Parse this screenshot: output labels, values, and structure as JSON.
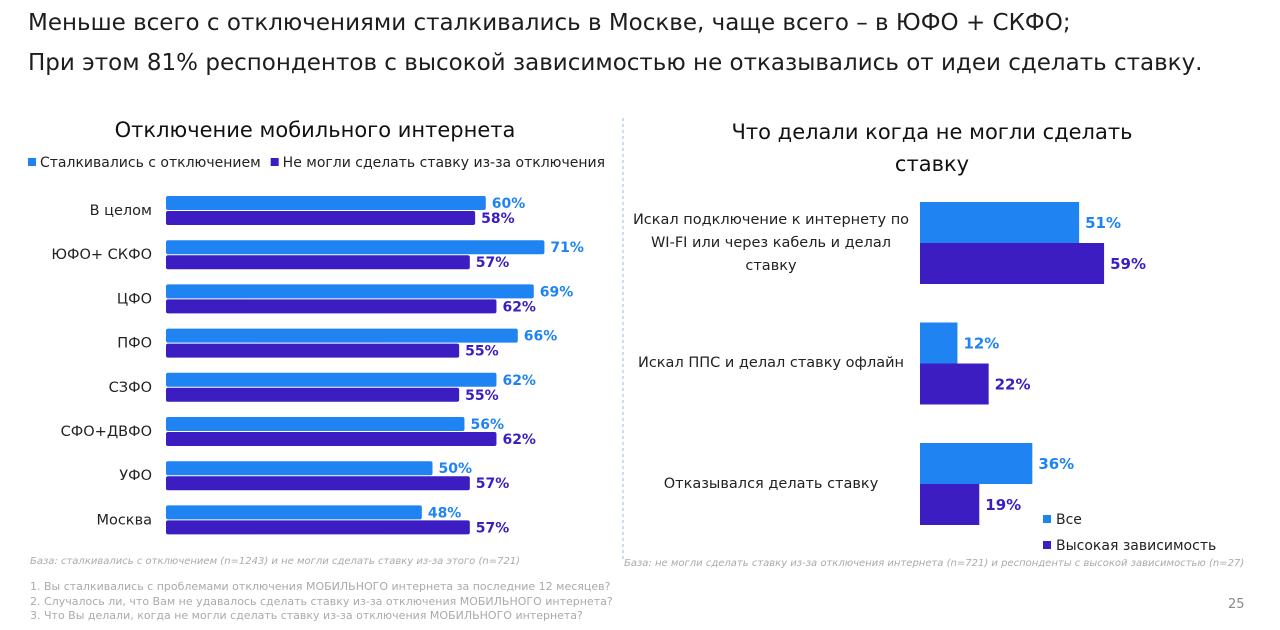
{
  "header": {
    "lines": [
      "Меньше всего с отключениями сталкивались в Москве, чаще всего – в ЮФО + СКФО;",
      "При этом 81% респондентов с высокой зависимостью не отказывались от идеи сделать ставку."
    ]
  },
  "chart_data": [
    {
      "type": "bar",
      "orientation": "horizontal",
      "title": "Отключение мобильного интернета",
      "categories": [
        "В целом",
        "ЮФО+ СКФО",
        "ЦФО",
        "ПФО",
        "СЗФО",
        "СФО+ДВФО",
        "УФО",
        "Москва"
      ],
      "series": [
        {
          "name": "Сталкивались с отключением",
          "color": "#1f84f2",
          "values": [
            60,
            71,
            69,
            66,
            62,
            56,
            50,
            48
          ],
          "value_labels": [
            "60%",
            "71%",
            "69%",
            "66%",
            "62%",
            "56%",
            "50%",
            "48%"
          ]
        },
        {
          "name": "Не могли сделать ставку из-за отключения",
          "color": "#3b1dc2",
          "values": [
            58,
            57,
            62,
            55,
            55,
            62,
            57,
            57
          ],
          "value_labels": [
            "58%",
            "57%",
            "62%",
            "55%",
            "55%",
            "62%",
            "57%",
            "57%"
          ]
        }
      ],
      "legend": "top"
    },
    {
      "type": "bar",
      "orientation": "horizontal",
      "title": "Что делали когда не могли сделать ставку",
      "categories": [
        "Искал подключение к интернету по WI-FI или через кабель и делал ставку",
        "Искал ППС и делал ставку офлайн",
        "Отказывался делать ставку"
      ],
      "series": [
        {
          "name": "Все",
          "color": "#1f84f2",
          "values": [
            51,
            12,
            36
          ],
          "value_labels": [
            "51%",
            "12%",
            "36%"
          ]
        },
        {
          "name": "Высокая зависимость",
          "color": "#3b1dc2",
          "values": [
            59,
            22,
            19
          ],
          "value_labels": [
            "59%",
            "22%",
            "19%"
          ]
        }
      ],
      "legend": "bottom-right"
    }
  ],
  "notes": {
    "bases": [
      "База:  сталкивались с отключением (n=1243) и не могли сделать ставку из-за этого (n=721)",
      "База:  не могли сделать ставку из-за отключения интернета (n=721) и респонденты с высокой зависимостью (n=27)"
    ],
    "questions": [
      "1. Вы сталкивались с проблемами отключения МОБИЛЬНОГО интернета за последние 12 месяцев?",
      "2. Случалось ли, что Вам не удавалось сделать ставку из-за отключения МОБИЛЬНОГО интернета?",
      "3. Что Вы делали, когда не могли сделать ставку из-за отключения МОБИЛЬНОГО интернета?"
    ]
  },
  "page_number": "25"
}
